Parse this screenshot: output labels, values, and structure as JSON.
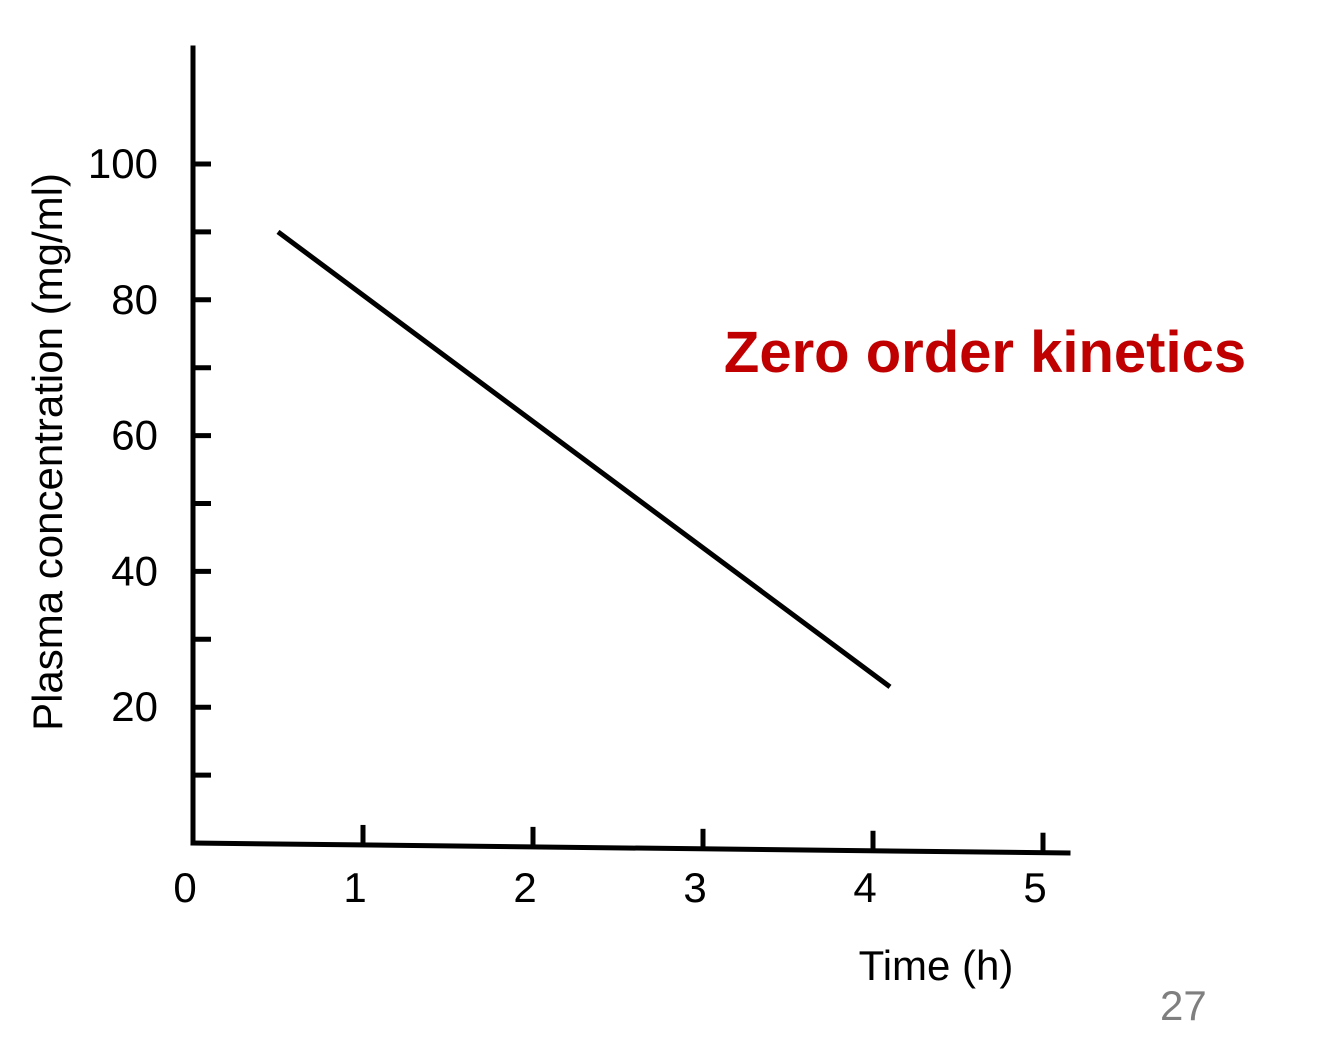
{
  "chart_data": {
    "type": "line",
    "title": "",
    "xlabel": "Time (h)",
    "ylabel": "Plasma concentration (mg/ml)",
    "xlim": [
      0,
      5
    ],
    "ylim": [
      0,
      117
    ],
    "x_ticks": [
      0,
      1,
      2,
      3,
      4,
      5
    ],
    "x_tick_labels": [
      "0",
      "1",
      "2",
      "3",
      "4",
      "5"
    ],
    "y_labeled_ticks": [
      20,
      40,
      60,
      80,
      100
    ],
    "y_tick_labels": [
      "20",
      "40",
      "60",
      "80",
      "100"
    ],
    "y_minor_ticks": [
      10,
      30,
      50,
      70,
      90
    ],
    "grid": false,
    "legend": "none",
    "series": [
      {
        "x": [
          0.5,
          4.1
        ],
        "y": [
          90,
          23
        ],
        "color": "#000000"
      }
    ],
    "annotations": [
      {
        "text": "Zero order kinetics",
        "color": "#c00000"
      }
    ]
  },
  "slide": {
    "number": "27",
    "number_color": "#7f7f7f"
  }
}
